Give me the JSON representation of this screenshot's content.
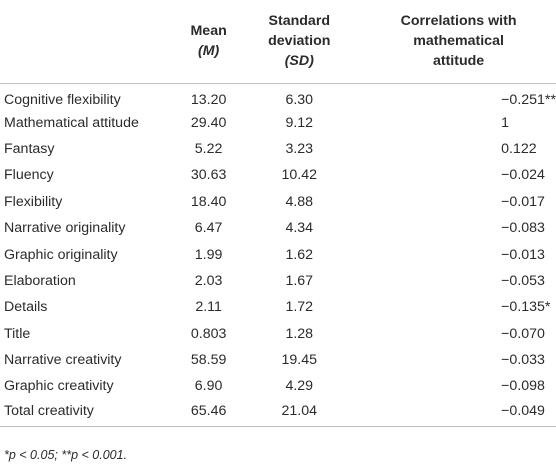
{
  "table": {
    "headers": {
      "variable": "",
      "mean_line1": "Mean",
      "mean_line2": "(M)",
      "sd_line1": "Standard",
      "sd_line2": "deviation",
      "sd_line3": "(SD)",
      "corr_line1": "Correlations with",
      "corr_line2": "mathematical",
      "corr_line3": "attitude"
    },
    "rows": [
      {
        "variable": "Cognitive flexibility",
        "mean": "13.20",
        "sd": "6.30",
        "corr": "−0.251**"
      },
      {
        "variable": "Mathematical attitude",
        "mean": "29.40",
        "sd": "9.12",
        "corr": "1"
      },
      {
        "variable": "Fantasy",
        "mean": "5.22",
        "sd": "3.23",
        "corr": "0.122"
      },
      {
        "variable": "Fluency",
        "mean": "30.63",
        "sd": "10.42",
        "corr": "−0.024"
      },
      {
        "variable": "Flexibility",
        "mean": "18.40",
        "sd": "4.88",
        "corr": "−0.017"
      },
      {
        "variable": "Narrative originality",
        "mean": "6.47",
        "sd": "4.34",
        "corr": "−0.083"
      },
      {
        "variable": "Graphic originality",
        "mean": "1.99",
        "sd": "1.62",
        "corr": "−0.013"
      },
      {
        "variable": "Elaboration",
        "mean": "2.03",
        "sd": "1.67",
        "corr": "−0.053"
      },
      {
        "variable": "Details",
        "mean": "2.11",
        "sd": "1.72",
        "corr": "−0.135*"
      },
      {
        "variable": "Title",
        "mean": "0.803",
        "sd": "1.28",
        "corr": "−0.070"
      },
      {
        "variable": "Narrative creativity",
        "mean": "58.59",
        "sd": "19.45",
        "corr": "−0.033"
      },
      {
        "variable": "Graphic creativity",
        "mean": "6.90",
        "sd": "4.29",
        "corr": "−0.098"
      },
      {
        "variable": "Total creativity",
        "mean": "65.46",
        "sd": "21.04",
        "corr": "−0.049"
      }
    ],
    "footnote": "*p < 0.05; **p < 0.001."
  }
}
